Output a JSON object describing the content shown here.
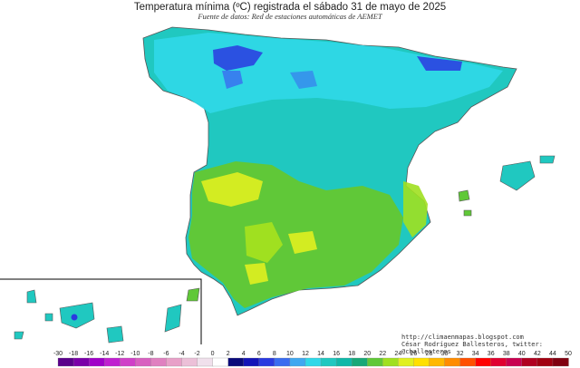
{
  "title": "Temperatura mínima (ºC) registrada el sábado 31 de mayo de 2025",
  "subtitle": "Fuente de datos: Red de estaciones automáticas de AEMET",
  "credits": {
    "url": "http://climaenmapas.blogspot.com",
    "author": "César Rodríguez Ballesteros, twitter: @cballesteros"
  },
  "legend": {
    "ticks": [
      "-30",
      "-18",
      "-16",
      "-14",
      "-12",
      "-10",
      "-8",
      "-6",
      "-4",
      "-2",
      "0",
      "2",
      "4",
      "6",
      "8",
      "10",
      "12",
      "14",
      "16",
      "18",
      "20",
      "22",
      "24",
      "26",
      "28",
      "30",
      "32",
      "34",
      "36",
      "38",
      "40",
      "42",
      "44",
      "50"
    ],
    "colors": [
      "#5a008a",
      "#7a00a8",
      "#a000c8",
      "#c020d0",
      "#d040c8",
      "#d860c0",
      "#e080c0",
      "#e8a0c8",
      "#ecc0d8",
      "#f0e0ec",
      "#ffffff",
      "#0a0a7a",
      "#1414b8",
      "#2a3ae0",
      "#3a6cf0",
      "#40a8f0",
      "#30d8e8",
      "#20c8c0",
      "#10b8a8",
      "#18a878",
      "#60c838",
      "#a0e020",
      "#e0f020",
      "#ffe000",
      "#ffb800",
      "#ff8c00",
      "#ff5000",
      "#ff0000",
      "#e00030",
      "#c80050",
      "#b00020",
      "#a00010",
      "#800010"
    ]
  },
  "map_colors": {
    "sea": "#ffffff",
    "cold_high": "#2a3ae0",
    "cool": "#30d8e8",
    "mild": "#20c8c0",
    "warm": "#60c838",
    "warmer": "#a0e020",
    "hot": "#e0f020"
  }
}
